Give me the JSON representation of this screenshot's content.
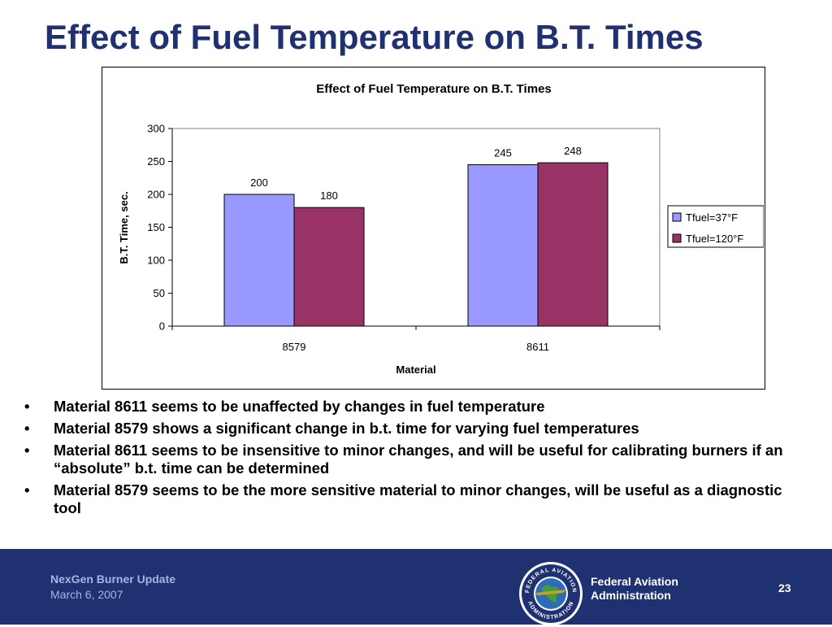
{
  "slide": {
    "title": "Effect of Fuel Temperature on B.T. Times",
    "bullets": [
      "Material 8611 seems to be unaffected by changes in fuel temperature",
      "Material 8579 shows a significant change in b.t. time for varying fuel temperatures",
      "Material 8611 seems to be insensitive to minor changes, and will be useful for calibrating burners if an “absolute” b.t. time can be determined",
      "Material 8579 seems to be the more sensitive material to minor changes, will be useful as a diagnostic tool"
    ],
    "bullet_glyph": "•"
  },
  "footer": {
    "presentation_title": "NexGen Burner Update",
    "date": "March 6, 2007",
    "agency_line1": "Federal Aviation",
    "agency_line2": "Administration",
    "page_number": "23",
    "seal_text": "FEDERAL AVIATION ADMINISTRATION",
    "seal_icon": "faa-seal-icon",
    "background_color": "#1f3170"
  },
  "chart_data": {
    "type": "bar",
    "title": "Effect of Fuel Temperature on B.T. Times",
    "xlabel": "Material",
    "ylabel": "B.T. Time, sec.",
    "categories": [
      "8579",
      "8611"
    ],
    "series": [
      {
        "name": "Tfuel=37°F",
        "values": [
          200,
          245
        ],
        "color": "#9999ff"
      },
      {
        "name": "Tfuel=120°F",
        "values": [
          180,
          248
        ],
        "color": "#993366"
      }
    ],
    "ylim": [
      0,
      300
    ],
    "yticks": [
      0,
      50,
      100,
      150,
      200,
      250,
      300
    ],
    "grid": false,
    "legend_position": "right",
    "data_labels": true
  }
}
